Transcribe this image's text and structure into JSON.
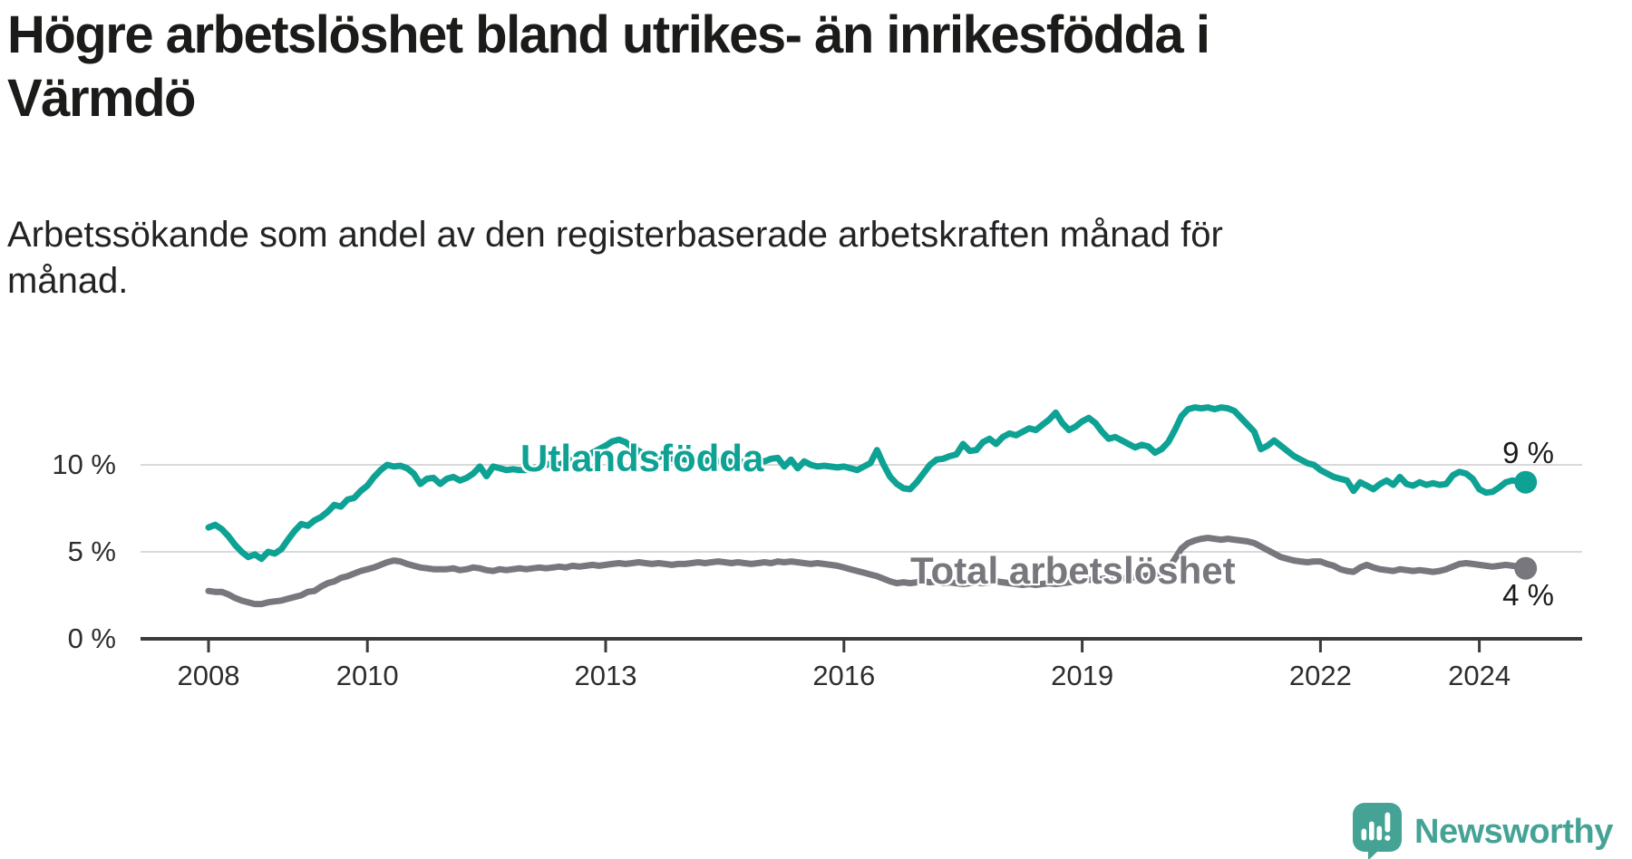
{
  "title": "Högre arbetslöshet bland utrikes- än inrikesfödda i Värmdö",
  "title_lines": [
    "Högre arbetslöshet bland utrikes- än inrikesfödda i",
    "Värmdö"
  ],
  "subtitle": "Arbetssökande som andel av den registerbaserade arbetskraften månad för månad.",
  "subtitle_lines": [
    "Arbetssökande som andel av den registerbaserade arbetskraften månad för",
    "månad."
  ],
  "branding": {
    "name": "Newsworthy",
    "color": "#45a396",
    "icon": "speech-bubble-bar-chart-exclamation"
  },
  "chart_data": {
    "type": "line",
    "title": "Högre arbetslöshet bland utrikes- än inrikesfödda i Värmdö",
    "subtitle": "Arbetssökande som andel av den registerbaserade arbetskraften månad för månad.",
    "x_start": {
      "year": 2008,
      "month": 1
    },
    "x_frequency": "monthly",
    "x_axis": {
      "ticks": [
        2008,
        2010,
        2013,
        2016,
        2019,
        2022,
        2024
      ]
    },
    "y_axis": {
      "ticks": [
        {
          "value": 0,
          "label": "0 %"
        },
        {
          "value": 5,
          "label": "5 %"
        },
        {
          "value": 10,
          "label": "10 %"
        }
      ],
      "ylim": [
        0,
        14.2
      ],
      "unit": "%"
    },
    "grid": "horizontal-only",
    "legend_position": "inline-labels",
    "series": [
      {
        "name": "Utlandsfödda",
        "color": "#0ea294",
        "end_label": "9 %",
        "end_value": 9,
        "values": [
          6.4,
          6.55,
          6.3,
          5.9,
          5.4,
          5.0,
          4.7,
          4.85,
          4.6,
          5.0,
          4.9,
          5.15,
          5.7,
          6.2,
          6.6,
          6.5,
          6.8,
          7.0,
          7.3,
          7.7,
          7.6,
          8.0,
          8.1,
          8.5,
          8.8,
          9.3,
          9.7,
          10.0,
          9.9,
          9.95,
          9.8,
          9.5,
          8.9,
          9.2,
          9.25,
          8.9,
          9.2,
          9.3,
          9.1,
          9.25,
          9.5,
          9.9,
          9.35,
          9.9,
          9.8,
          9.7,
          9.75,
          9.7,
          9.7,
          9.8,
          9.9,
          10.0,
          10.1,
          10.0,
          10.2,
          10.3,
          10.4,
          10.5,
          10.7,
          10.9,
          11.1,
          11.35,
          11.45,
          11.3,
          11.0,
          10.8,
          10.6,
          10.65,
          10.45,
          10.55,
          10.35,
          10.45,
          10.3,
          10.45,
          10.3,
          10.2,
          10.35,
          10.2,
          10.3,
          10.15,
          10.25,
          10.1,
          10.2,
          10.3,
          10.2,
          10.35,
          10.4,
          9.9,
          10.3,
          9.8,
          10.2,
          10.0,
          9.9,
          9.95,
          9.9,
          9.85,
          9.9,
          9.8,
          9.7,
          9.9,
          10.1,
          10.85,
          10.0,
          9.3,
          8.9,
          8.65,
          8.6,
          9.0,
          9.5,
          10.0,
          10.3,
          10.35,
          10.5,
          10.6,
          11.2,
          10.8,
          10.85,
          11.3,
          11.5,
          11.2,
          11.6,
          11.8,
          11.7,
          11.9,
          12.1,
          12.0,
          12.3,
          12.6,
          13.0,
          12.4,
          12.0,
          12.2,
          12.5,
          12.7,
          12.4,
          11.9,
          11.5,
          11.6,
          11.4,
          11.2,
          11.0,
          11.15,
          11.05,
          10.7,
          10.9,
          11.3,
          12.0,
          12.8,
          13.2,
          13.3,
          13.25,
          13.3,
          13.2,
          13.3,
          13.25,
          13.1,
          12.7,
          12.3,
          11.9,
          10.9,
          11.1,
          11.4,
          11.1,
          10.8,
          10.5,
          10.3,
          10.1,
          10.0,
          9.7,
          9.5,
          9.3,
          9.2,
          9.1,
          8.5,
          9.0,
          8.8,
          8.6,
          8.9,
          9.1,
          8.85,
          9.3,
          8.9,
          8.8,
          9.0,
          8.85,
          8.95,
          8.85,
          8.9,
          9.4,
          9.6,
          9.5,
          9.2,
          8.6,
          8.4,
          8.45,
          8.7,
          9.0,
          9.1,
          9.05,
          9.0
        ]
      },
      {
        "name": "Total arbetslöshet",
        "color": "#77777d",
        "end_label": "4 %",
        "end_value": 4,
        "values": [
          2.75,
          2.7,
          2.7,
          2.55,
          2.35,
          2.2,
          2.1,
          2.0,
          2.0,
          2.1,
          2.15,
          2.2,
          2.3,
          2.4,
          2.5,
          2.7,
          2.75,
          3.0,
          3.2,
          3.3,
          3.5,
          3.6,
          3.75,
          3.9,
          4.0,
          4.1,
          4.25,
          4.4,
          4.5,
          4.45,
          4.3,
          4.2,
          4.1,
          4.05,
          4.0,
          4.0,
          4.0,
          4.05,
          3.95,
          4.0,
          4.1,
          4.05,
          3.95,
          3.9,
          4.0,
          3.95,
          4.0,
          4.05,
          4.0,
          4.05,
          4.1,
          4.05,
          4.1,
          4.15,
          4.1,
          4.2,
          4.15,
          4.2,
          4.25,
          4.2,
          4.25,
          4.3,
          4.35,
          4.3,
          4.35,
          4.4,
          4.35,
          4.3,
          4.35,
          4.3,
          4.25,
          4.3,
          4.3,
          4.35,
          4.4,
          4.35,
          4.4,
          4.45,
          4.4,
          4.35,
          4.4,
          4.35,
          4.3,
          4.35,
          4.4,
          4.35,
          4.45,
          4.4,
          4.45,
          4.4,
          4.35,
          4.3,
          4.35,
          4.3,
          4.25,
          4.2,
          4.1,
          4.0,
          3.9,
          3.8,
          3.7,
          3.6,
          3.45,
          3.3,
          3.2,
          3.25,
          3.2,
          3.25,
          3.3,
          3.25,
          3.3,
          3.2,
          3.25,
          3.2,
          3.15,
          3.2,
          3.25,
          3.2,
          3.25,
          3.3,
          3.25,
          3.2,
          3.15,
          3.1,
          3.15,
          3.1,
          3.15,
          3.2,
          3.15,
          3.2,
          3.25,
          3.3,
          3.35,
          3.4,
          3.35,
          3.45,
          3.5,
          3.55,
          3.5,
          3.45,
          3.55,
          3.6,
          3.65,
          3.7,
          3.8,
          4.0,
          4.6,
          5.2,
          5.5,
          5.65,
          5.75,
          5.8,
          5.75,
          5.7,
          5.75,
          5.7,
          5.65,
          5.6,
          5.5,
          5.3,
          5.1,
          4.9,
          4.7,
          4.6,
          4.5,
          4.45,
          4.4,
          4.45,
          4.45,
          4.3,
          4.2,
          4.0,
          3.9,
          3.85,
          4.1,
          4.25,
          4.1,
          4.0,
          3.95,
          3.9,
          4.0,
          3.95,
          3.9,
          3.95,
          3.9,
          3.85,
          3.9,
          4.0,
          4.15,
          4.3,
          4.35,
          4.3,
          4.25,
          4.2,
          4.15,
          4.2,
          4.25,
          4.2,
          4.15,
          4.05
        ]
      }
    ]
  }
}
